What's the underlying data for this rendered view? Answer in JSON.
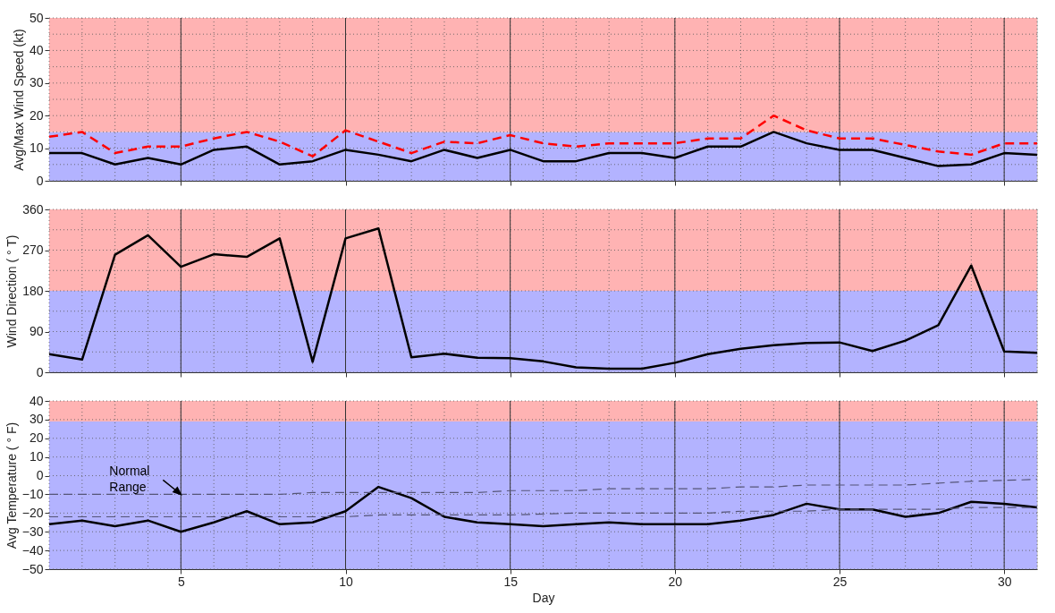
{
  "chart_data": [
    {
      "type": "line",
      "ylabel": "Avg/Max Wind Speed (kt)",
      "x": [
        1,
        2,
        3,
        4,
        5,
        6,
        7,
        8,
        9,
        10,
        11,
        12,
        13,
        14,
        15,
        16,
        17,
        18,
        19,
        20,
        21,
        22,
        23,
        24,
        25,
        26,
        27,
        28,
        29,
        30,
        31
      ],
      "xlim": [
        1,
        31
      ],
      "xticks": [
        5,
        10,
        15,
        20,
        25,
        30
      ],
      "ylim": [
        0,
        50
      ],
      "yticks": [
        0,
        10,
        20,
        30,
        40,
        50
      ],
      "grid": true,
      "tick_labels": "y",
      "bands": [
        {
          "axis": "y",
          "from": 0,
          "to": 15,
          "color": "#b3b3ff"
        },
        {
          "axis": "y",
          "from": 15,
          "to": 50,
          "color": "#ffb3b3"
        }
      ],
      "series": [
        {
          "color": "#000000",
          "line_style": "solid",
          "values": [
            8.5,
            8.5,
            5,
            7,
            5,
            9.5,
            10.5,
            5,
            6,
            9.5,
            8,
            6,
            9.5,
            7,
            9.5,
            6,
            6,
            8.5,
            8.5,
            7,
            10.5,
            10.5,
            15,
            11.5,
            9.5,
            9.5,
            7,
            4.5,
            5,
            8.5,
            8
          ]
        },
        {
          "color": "#ff0000",
          "line_style": "dashed",
          "values": [
            13.5,
            15,
            8.5,
            10.5,
            10.5,
            13,
            15,
            12,
            7.5,
            15.5,
            12,
            8.5,
            12,
            11.5,
            14,
            11.5,
            10.5,
            11.5,
            11.5,
            11.5,
            13,
            13,
            20,
            15.5,
            13,
            13,
            11,
            9,
            8,
            11.5,
            11.5
          ]
        }
      ]
    },
    {
      "type": "line",
      "ylabel": "Wind Direction ( ° T)",
      "x": [
        1,
        2,
        3,
        4,
        5,
        6,
        7,
        8,
        9,
        10,
        11,
        12,
        13,
        14,
        15,
        16,
        17,
        18,
        19,
        20,
        21,
        22,
        23,
        24,
        25,
        26,
        27,
        28,
        29,
        30,
        31
      ],
      "xlim": [
        1,
        31
      ],
      "xticks": [
        5,
        10,
        15,
        20,
        25,
        30
      ],
      "ylim": [
        0,
        360
      ],
      "yticks": [
        0,
        90,
        180,
        270,
        360
      ],
      "grid": true,
      "tick_labels": "y",
      "bands": [
        {
          "axis": "y",
          "from": 0,
          "to": 180,
          "color": "#b3b3ff"
        },
        {
          "axis": "y",
          "from": 180,
          "to": 360,
          "color": "#ffb3b3"
        }
      ],
      "series": [
        {
          "color": "#000000",
          "line_style": "solid",
          "values": [
            40,
            28,
            260,
            303,
            233,
            261,
            255,
            296,
            23,
            296,
            318,
            33,
            41,
            32,
            31,
            24,
            11,
            8,
            8,
            21,
            40,
            52,
            60,
            65,
            66,
            47,
            70,
            104,
            236,
            46,
            43
          ]
        }
      ]
    },
    {
      "type": "line",
      "ylabel": "Avg Temperature ( ° F)",
      "xlabel": "Day",
      "x": [
        1,
        2,
        3,
        4,
        5,
        6,
        7,
        8,
        9,
        10,
        11,
        12,
        13,
        14,
        15,
        16,
        17,
        18,
        19,
        20,
        21,
        22,
        23,
        24,
        25,
        26,
        27,
        28,
        29,
        30,
        31
      ],
      "xlim": [
        1,
        31
      ],
      "xticks": [
        5,
        10,
        15,
        20,
        25,
        30
      ],
      "ylim": [
        -50,
        40
      ],
      "yticks": [
        -50,
        -40,
        -30,
        -20,
        -10,
        0,
        10,
        20,
        30,
        40
      ],
      "grid": true,
      "bands": [
        {
          "axis": "y",
          "from": -50,
          "to": 29,
          "color": "#b3b3ff"
        },
        {
          "axis": "y",
          "from": 29,
          "to": 40,
          "color": "#ffb3b3"
        }
      ],
      "annotations": [
        {
          "text": "Normal Range",
          "x": 5,
          "y": -10
        }
      ],
      "series": [
        {
          "color": "#000000",
          "line_style": "solid",
          "values": [
            -26,
            -24,
            -27,
            -24,
            -30,
            -25,
            -19,
            -26,
            -25,
            -19,
            -6,
            -12,
            -22,
            -25,
            -26,
            -27,
            -26,
            -25,
            -26,
            -26,
            -26,
            -24,
            -21,
            -15,
            -18,
            -18,
            -22,
            -20,
            -14,
            -15,
            -17
          ]
        },
        {
          "color": "#555577",
          "line_style": "dashed",
          "x": [
            1,
            8,
            9,
            14,
            15,
            17,
            18,
            21,
            22,
            23,
            24,
            27,
            28,
            29,
            31
          ],
          "values": [
            -10,
            -10,
            -9,
            -9,
            -8,
            -8,
            -7,
            -7,
            -6,
            -6,
            -5,
            -5,
            -4,
            -3,
            -2
          ]
        },
        {
          "color": "#555577",
          "line_style": "dashed",
          "x": [
            1,
            10,
            11,
            15,
            17,
            21,
            22,
            24,
            25,
            28,
            29,
            31
          ],
          "values": [
            -22,
            -22,
            -21,
            -21,
            -20,
            -20,
            -19,
            -19,
            -18,
            -18,
            -17,
            -17
          ]
        }
      ]
    }
  ]
}
